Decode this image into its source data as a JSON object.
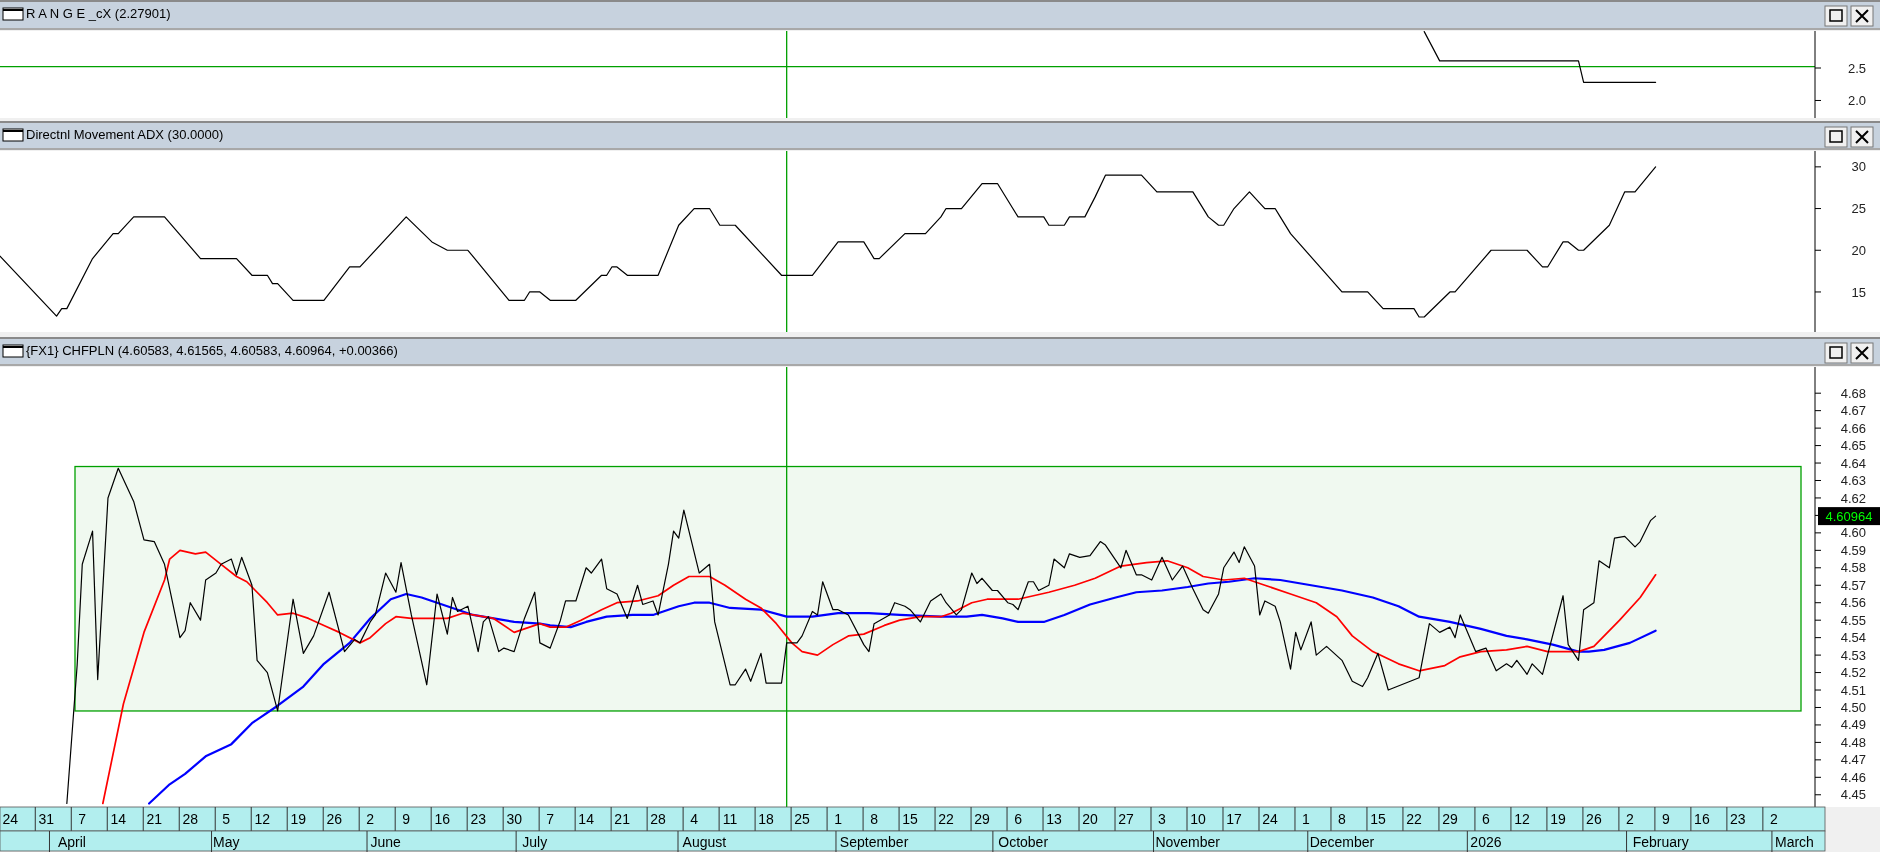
{
  "chart_data": [
    {
      "type": "line",
      "title": "R A N G E _cX (2.27901)",
      "xlim": [
        "2025-03-22",
        "2026-03-10"
      ],
      "ylim": [
        1.73,
        3.07
      ],
      "yticks": [
        {
          "value": 2,
          "label": "2.0"
        },
        2.5
      ],
      "tick_labels": "y",
      "series": [
        {
          "color": "#000000",
          "x": [
            "2025-12-24",
            "2025-12-27",
            "2026-01-23",
            "2026-01-24",
            "2026-02-07"
          ],
          "values": [
            3.06,
            2.61,
            2.61,
            2.28,
            2.28
          ]
        }
      ],
      "ref_lines": [
        {
          "axis": "x",
          "value": "2025-08-22",
          "color": "#00a000"
        },
        {
          "axis": "y",
          "value": 2.52,
          "color": "#00a000"
        }
      ]
    },
    {
      "type": "line",
      "title": "Directnl Movement ADX (30.0000)",
      "xlim": [
        "2025-03-22",
        "2026-03-10"
      ],
      "ylim": [
        10.2,
        31.9
      ],
      "yticks": [
        15,
        20,
        25,
        30
      ],
      "tick_labels": "y",
      "series": [
        {
          "color": "#000000",
          "x": [
            "2025-03-22",
            "2025-04-02",
            "2025-04-03",
            "2025-04-04",
            "2025-04-09",
            "2025-04-13",
            "2025-04-14",
            "2025-04-17",
            "2025-04-23",
            "2025-04-30",
            "2025-05-07",
            "2025-05-10",
            "2025-05-13",
            "2025-05-14",
            "2025-05-15",
            "2025-05-18",
            "2025-05-24",
            "2025-05-29",
            "2025-05-31",
            "2025-06-09",
            "2025-06-14",
            "2025-06-17",
            "2025-06-21",
            "2025-06-29",
            "2025-07-02",
            "2025-07-03",
            "2025-07-05",
            "2025-07-07",
            "2025-07-12",
            "2025-07-17",
            "2025-07-18",
            "2025-07-19",
            "2025-07-20",
            "2025-07-22",
            "2025-07-28",
            "2025-08-01",
            "2025-08-04",
            "2025-08-07",
            "2025-08-09",
            "2025-08-12",
            "2025-08-21",
            "2025-08-27",
            "2025-09-01",
            "2025-09-06",
            "2025-09-08",
            "2025-09-09",
            "2025-09-14",
            "2025-09-18",
            "2025-09-21",
            "2025-09-22",
            "2025-09-25",
            "2025-09-29",
            "2025-10-02",
            "2025-10-04",
            "2025-10-06",
            "2025-10-11",
            "2025-10-12",
            "2025-10-15",
            "2025-10-16",
            "2025-10-19",
            "2025-10-21",
            "2025-10-23",
            "2025-10-30",
            "2025-11-02",
            "2025-11-09",
            "2025-11-12",
            "2025-11-14",
            "2025-11-15",
            "2025-11-17",
            "2025-11-20",
            "2025-11-23",
            "2025-11-25",
            "2025-11-26",
            "2025-11-28",
            "2025-12-08",
            "2025-12-13",
            "2025-12-16",
            "2025-12-22",
            "2025-12-23",
            "2025-12-24",
            "2025-12-29",
            "2025-12-30",
            "2026-01-06",
            "2026-01-13",
            "2026-01-16",
            "2026-01-17",
            "2026-01-20",
            "2026-01-21",
            "2026-01-23",
            "2026-01-24",
            "2026-01-29",
            "2026-02-01",
            "2026-02-03",
            "2026-02-07"
          ],
          "values": [
            19.3,
            12.1,
            13,
            13,
            19,
            22,
            22,
            24,
            24,
            19,
            19,
            17,
            17,
            16,
            16,
            14,
            14,
            18,
            18,
            24,
            21,
            20,
            20,
            14,
            14,
            15,
            15,
            14,
            14,
            17,
            17,
            18,
            18,
            17,
            17,
            23,
            25,
            25,
            23,
            23,
            17,
            17,
            21,
            21,
            19,
            19,
            22,
            22,
            24,
            25,
            25,
            28,
            28,
            26,
            24,
            24,
            23,
            23,
            24,
            24,
            26.4,
            29,
            29,
            27,
            27,
            24,
            23,
            23,
            25,
            27,
            25,
            25,
            24,
            22,
            15,
            15,
            13,
            13,
            12,
            12,
            15,
            15,
            20,
            20,
            18,
            18,
            21,
            21,
            20,
            20,
            23,
            27,
            27,
            30
          ]
        }
      ],
      "ref_lines": [
        {
          "axis": "x",
          "value": "2025-08-22",
          "color": "#00a000"
        }
      ]
    },
    {
      "type": "line",
      "title": "{FX1} CHFPLN (4.60583, 4.61565, 4.60583, 4.60964, +0.00366)",
      "xlim": [
        "2025-03-22",
        "2026-03-10"
      ],
      "ylim": [
        4.443,
        4.695
      ],
      "yticks": [
        4.45,
        4.46,
        4.47,
        4.48,
        4.49,
        {
          "value": 4.5,
          "label": "4.50"
        },
        4.51,
        4.52,
        4.53,
        4.54,
        4.55,
        4.56,
        4.57,
        4.58,
        4.59,
        {
          "value": 4.6,
          "label": "4.60"
        },
        {
          "value": 4.61,
          "label": null
        },
        4.62,
        4.63,
        4.64,
        4.65,
        4.66,
        4.67,
        4.68
      ],
      "xticks": [
        {
          "value": "2025-03-24",
          "label": "24"
        },
        {
          "value": "2025-03-31",
          "label": "31"
        },
        {
          "value": "2025-04-07",
          "label": "7"
        },
        {
          "value": "2025-04-14",
          "label": "14"
        },
        {
          "value": "2025-04-21",
          "label": "21"
        },
        {
          "value": "2025-04-28",
          "label": "28"
        },
        {
          "value": "2025-05-05",
          "label": "5"
        },
        {
          "value": "2025-05-12",
          "label": "12"
        },
        {
          "value": "2025-05-19",
          "label": "19"
        },
        {
          "value": "2025-05-26",
          "label": "26"
        },
        {
          "value": "2025-06-02",
          "label": "2"
        },
        {
          "value": "2025-06-09",
          "label": "9"
        },
        {
          "value": "2025-06-16",
          "label": "16"
        },
        {
          "value": "2025-06-23",
          "label": "23"
        },
        {
          "value": "2025-06-30",
          "label": "30"
        },
        {
          "value": "2025-07-07",
          "label": "7"
        },
        {
          "value": "2025-07-14",
          "label": "14"
        },
        {
          "value": "2025-07-21",
          "label": "21"
        },
        {
          "value": "2025-07-28",
          "label": "28"
        },
        {
          "value": "2025-08-04",
          "label": "4"
        },
        {
          "value": "2025-08-11",
          "label": "11"
        },
        {
          "value": "2025-08-18",
          "label": "18"
        },
        {
          "value": "2025-08-25",
          "label": "25"
        },
        {
          "value": "2025-09-01",
          "label": "1"
        },
        {
          "value": "2025-09-08",
          "label": "8"
        },
        {
          "value": "2025-09-15",
          "label": "15"
        },
        {
          "value": "2025-09-22",
          "label": "22"
        },
        {
          "value": "2025-09-29",
          "label": "29"
        },
        {
          "value": "2025-10-06",
          "label": "6"
        },
        {
          "value": "2025-10-13",
          "label": "13"
        },
        {
          "value": "2025-10-20",
          "label": "20"
        },
        {
          "value": "2025-10-27",
          "label": "27"
        },
        {
          "value": "2025-11-03",
          "label": "3"
        },
        {
          "value": "2025-11-10",
          "label": "10"
        },
        {
          "value": "2025-11-17",
          "label": "17"
        },
        {
          "value": "2025-11-24",
          "label": "24"
        },
        {
          "value": "2025-12-01",
          "label": "1"
        },
        {
          "value": "2025-12-08",
          "label": "8"
        },
        {
          "value": "2025-12-15",
          "label": "15"
        },
        {
          "value": "2025-12-22",
          "label": "22"
        },
        {
          "value": "2025-12-29",
          "label": "29"
        },
        {
          "value": "2026-01-05",
          "label": "6"
        },
        {
          "value": "2026-01-12",
          "label": "12"
        },
        {
          "value": "2026-01-19",
          "label": "19"
        },
        {
          "value": "2026-01-26",
          "label": "26"
        },
        {
          "value": "2026-02-02",
          "label": "2"
        },
        {
          "value": "2026-02-09",
          "label": "9"
        },
        {
          "value": "2026-02-16",
          "label": "16"
        },
        {
          "value": "2026-02-23",
          "label": "23"
        },
        {
          "value": "2026-03-02",
          "label": "2"
        }
      ],
      "x2lim": [
        "2025-03-22",
        "2026-03-10"
      ],
      "x2ticks": [
        {
          "value": "2025-04-05",
          "label": "April"
        },
        {
          "value": "2025-05-05",
          "label": "May"
        },
        {
          "value": "2025-06-05",
          "label": "June"
        },
        {
          "value": "2025-07-04",
          "label": "July"
        },
        {
          "value": "2025-08-06",
          "label": "August"
        },
        {
          "value": "2025-09-08",
          "label": "September"
        },
        {
          "value": "2025-10-07",
          "label": "October"
        },
        {
          "value": "2025-11-08",
          "label": "November"
        },
        {
          "value": "2025-12-08",
          "label": "December"
        },
        {
          "value": "2026-01-05",
          "label": "2026"
        },
        {
          "value": "2026-02-08",
          "label": "February"
        },
        {
          "value": "2026-03-06",
          "label": "March"
        }
      ],
      "series": [
        {
          "color": "#000000",
          "x": [
            "2025-04-04",
            "2025-04-06",
            "2025-04-07",
            "2025-04-09",
            "2025-04-10",
            "2025-04-12",
            "2025-04-14",
            "2025-04-17",
            "2025-04-19",
            "2025-04-21",
            "2025-04-23",
            "2025-04-26",
            "2025-04-27",
            "2025-04-28",
            "2025-04-30",
            "2025-05-01",
            "2025-05-03",
            "2025-05-04",
            "2025-05-06",
            "2025-05-07",
            "2025-05-08",
            "2025-05-10",
            "2025-05-11",
            "2025-05-13",
            "2025-05-15",
            "2025-05-18",
            "2025-05-20",
            "2025-05-22",
            "2025-05-25",
            "2025-05-28",
            "2025-05-30",
            "2025-05-31",
            "2025-06-02",
            "2025-06-03",
            "2025-06-05",
            "2025-06-07",
            "2025-06-08",
            "2025-06-10",
            "2025-06-13",
            "2025-06-15",
            "2025-06-17",
            "2025-06-18",
            "2025-06-19",
            "2025-06-21",
            "2025-06-23",
            "2025-06-24",
            "2025-06-25",
            "2025-06-27",
            "2025-06-28",
            "2025-06-30",
            "2025-07-02",
            "2025-07-04",
            "2025-07-05",
            "2025-07-07",
            "2025-07-09",
            "2025-07-10",
            "2025-07-12",
            "2025-07-14",
            "2025-07-15",
            "2025-07-17",
            "2025-07-18",
            "2025-07-20",
            "2025-07-22",
            "2025-07-24",
            "2025-07-25",
            "2025-07-27",
            "2025-07-28",
            "2025-07-30",
            "2025-07-31",
            "2025-08-01",
            "2025-08-02",
            "2025-08-04",
            "2025-08-05",
            "2025-08-07",
            "2025-08-08",
            "2025-08-11",
            "2025-08-12",
            "2025-08-14",
            "2025-08-15",
            "2025-08-17",
            "2025-08-18",
            "2025-08-21",
            "2025-08-22",
            "2025-08-24",
            "2025-08-25",
            "2025-08-27",
            "2025-08-28",
            "2025-08-29",
            "2025-08-31",
            "2025-09-01",
            "2025-09-03",
            "2025-09-06",
            "2025-09-07",
            "2025-09-08",
            "2025-09-11",
            "2025-09-12",
            "2025-09-14",
            "2025-09-15",
            "2025-09-17",
            "2025-09-19",
            "2025-09-21",
            "2025-09-22",
            "2025-09-24",
            "2025-09-25",
            "2025-09-27",
            "2025-09-28",
            "2025-09-29",
            "2025-10-01",
            "2025-10-02",
            "2025-10-04",
            "2025-10-05",
            "2025-10-06",
            "2025-10-08",
            "2025-10-09",
            "2025-10-10",
            "2025-10-12",
            "2025-10-13",
            "2025-10-15",
            "2025-10-16",
            "2025-10-18",
            "2025-10-20",
            "2025-10-22",
            "2025-10-23",
            "2025-10-26",
            "2025-10-27",
            "2025-10-29",
            "2025-10-30",
            "2025-11-01",
            "2025-11-03",
            "2025-11-05",
            "2025-11-07",
            "2025-11-09",
            "2025-11-11",
            "2025-11-12",
            "2025-11-14",
            "2025-11-15",
            "2025-11-17",
            "2025-11-18",
            "2025-11-19",
            "2025-11-21",
            "2025-11-22",
            "2025-11-23",
            "2025-11-25",
            "2025-11-26",
            "2025-11-28",
            "2025-11-29",
            "2025-11-30",
            "2025-12-02",
            "2025-12-03",
            "2025-12-05",
            "2025-12-08",
            "2025-12-10",
            "2025-12-12",
            "2025-12-13",
            "2025-12-15",
            "2025-12-17",
            "2025-12-23",
            "2025-12-25",
            "2025-12-27",
            "2025-12-29",
            "2025-12-30",
            "2025-12-31",
            "2026-01-03",
            "2026-01-05",
            "2026-01-07",
            "2026-01-09",
            "2026-01-10",
            "2026-01-11",
            "2026-01-13",
            "2026-01-14",
            "2026-01-16",
            "2026-01-20",
            "2026-01-21",
            "2026-01-23",
            "2026-01-24",
            "2026-01-26",
            "2026-01-27",
            "2026-01-29",
            "2026-01-30",
            "2026-02-01",
            "2026-02-03",
            "2026-02-04",
            "2026-02-06",
            "2026-02-07"
          ],
          "values": [
            4.445,
            4.524,
            4.582,
            4.601,
            4.516,
            4.62,
            4.637,
            4.618,
            4.596,
            4.595,
            4.582,
            4.54,
            4.544,
            4.56,
            4.55,
            4.573,
            4.577,
            4.582,
            4.585,
            4.576,
            4.586,
            4.57,
            4.527,
            4.52,
            4.498,
            4.562,
            4.531,
            4.541,
            4.566,
            4.532,
            4.539,
            4.537,
            4.549,
            4.553,
            4.577,
            4.566,
            4.583,
            4.553,
            4.513,
            4.565,
            4.542,
            4.563,
            4.555,
            4.558,
            4.532,
            4.549,
            4.552,
            4.532,
            4.534,
            4.532,
            4.551,
            4.566,
            4.537,
            4.534,
            4.55,
            4.561,
            4.561,
            4.58,
            4.577,
            4.585,
            4.568,
            4.565,
            4.551,
            4.57,
            4.559,
            4.561,
            4.553,
            4.582,
            4.601,
            4.597,
            4.613,
            4.589,
            4.577,
            4.582,
            4.549,
            4.513,
            4.513,
            4.522,
            4.515,
            4.531,
            4.514,
            4.514,
            4.537,
            4.537,
            4.541,
            4.555,
            4.553,
            4.572,
            4.556,
            4.556,
            4.553,
            4.536,
            4.532,
            4.548,
            4.553,
            4.56,
            4.558,
            4.556,
            4.549,
            4.561,
            4.565,
            4.56,
            4.553,
            4.556,
            4.577,
            4.571,
            4.574,
            4.567,
            4.567,
            4.56,
            4.559,
            4.556,
            4.572,
            4.572,
            4.567,
            4.57,
            4.585,
            4.58,
            4.588,
            4.586,
            4.587,
            4.595,
            4.593,
            4.58,
            4.59,
            4.576,
            4.576,
            4.573,
            4.586,
            4.573,
            4.581,
            4.568,
            4.556,
            4.554,
            4.565,
            4.58,
            4.589,
            4.583,
            4.592,
            4.581,
            4.553,
            4.561,
            4.558,
            4.549,
            4.522,
            4.543,
            4.533,
            4.549,
            4.53,
            4.535,
            4.527,
            4.515,
            4.512,
            4.517,
            4.531,
            4.51,
            4.517,
            4.548,
            4.543,
            4.546,
            4.54,
            4.553,
            4.532,
            4.534,
            4.521,
            4.525,
            4.523,
            4.527,
            4.519,
            4.525,
            4.519,
            4.564,
            4.536,
            4.527,
            4.556,
            4.56,
            4.584,
            4.58,
            4.597,
            4.598,
            4.592,
            4.595,
            4.607,
            4.6096
          ]
        },
        {
          "color": "#ff0000",
          "x": [
            "2025-04-11",
            "2025-04-15",
            "2025-04-19",
            "2025-04-23",
            "2025-04-24",
            "2025-04-26",
            "2025-04-29",
            "2025-05-01",
            "2025-05-04",
            "2025-05-07",
            "2025-05-09",
            "2025-05-13",
            "2025-05-15",
            "2025-05-18",
            "2025-05-21",
            "2025-05-24",
            "2025-05-27",
            "2025-05-31",
            "2025-06-02",
            "2025-06-05",
            "2025-06-07",
            "2025-06-10",
            "2025-06-13",
            "2025-06-17",
            "2025-06-20",
            "2025-06-24",
            "2025-06-26",
            "2025-06-30",
            "2025-07-03",
            "2025-07-05",
            "2025-07-07",
            "2025-07-10",
            "2025-07-13",
            "2025-07-17",
            "2025-07-20",
            "2025-07-24",
            "2025-07-28",
            "2025-07-31",
            "2025-08-03",
            "2025-08-07",
            "2025-08-10",
            "2025-08-14",
            "2025-08-17",
            "2025-08-20",
            "2025-08-23",
            "2025-08-25",
            "2025-08-28",
            "2025-08-31",
            "2025-09-03",
            "2025-09-06",
            "2025-09-10",
            "2025-09-13",
            "2025-09-17",
            "2025-09-21",
            "2025-09-23",
            "2025-09-27",
            "2025-09-30",
            "2025-10-06",
            "2025-10-12",
            "2025-10-17",
            "2025-10-21",
            "2025-10-26",
            "2025-10-31",
            "2025-11-04",
            "2025-11-08",
            "2025-11-11",
            "2025-11-15",
            "2025-11-19",
            "2025-11-23",
            "2025-11-28",
            "2025-12-03",
            "2025-12-07",
            "2025-12-10",
            "2025-12-14",
            "2025-12-19",
            "2025-12-23",
            "2025-12-28",
            "2025-12-31",
            "2026-01-04",
            "2026-01-09",
            "2026-01-13",
            "2026-01-17",
            "2026-01-20",
            "2026-01-23",
            "2026-01-26",
            "2026-01-31",
            "2026-02-04",
            "2026-02-07"
          ],
          "values": [
            4.445,
            4.502,
            4.543,
            4.573,
            4.585,
            4.59,
            4.588,
            4.589,
            4.582,
            4.575,
            4.572,
            4.56,
            4.553,
            4.554,
            4.551,
            4.547,
            4.543,
            4.537,
            4.54,
            4.548,
            4.552,
            4.551,
            4.551,
            4.551,
            4.554,
            4.552,
            4.551,
            4.543,
            4.546,
            4.548,
            4.546,
            4.546,
            4.55,
            4.556,
            4.56,
            4.561,
            4.564,
            4.57,
            4.575,
            4.575,
            4.57,
            4.562,
            4.557,
            4.548,
            4.537,
            4.532,
            4.53,
            4.536,
            4.541,
            4.542,
            4.547,
            4.55,
            4.552,
            4.552,
            4.554,
            4.56,
            4.562,
            4.562,
            4.566,
            4.57,
            4.574,
            4.581,
            4.583,
            4.584,
            4.58,
            4.575,
            4.573,
            4.574,
            4.57,
            4.565,
            4.56,
            4.552,
            4.541,
            4.532,
            4.525,
            4.521,
            4.524,
            4.529,
            4.532,
            4.533,
            4.535,
            4.532,
            4.532,
            4.532,
            4.535,
            4.55,
            4.563,
            4.576
          ]
        },
        {
          "color": "#0000ff",
          "x": [
            "2025-04-20",
            "2025-04-24",
            "2025-04-27",
            "2025-05-01",
            "2025-05-06",
            "2025-05-10",
            "2025-05-15",
            "2025-05-20",
            "2025-05-24",
            "2025-05-29",
            "2025-06-02",
            "2025-06-06",
            "2025-06-09",
            "2025-06-12",
            "2025-06-15",
            "2025-06-19",
            "2025-06-22",
            "2025-06-26",
            "2025-06-30",
            "2025-07-05",
            "2025-07-07",
            "2025-07-11",
            "2025-07-14",
            "2025-07-18",
            "2025-07-23",
            "2025-07-27",
            "2025-08-01",
            "2025-08-04",
            "2025-08-07",
            "2025-08-11",
            "2025-08-17",
            "2025-08-22",
            "2025-08-27",
            "2025-09-01",
            "2025-09-07",
            "2025-09-13",
            "2025-09-21",
            "2025-09-26",
            "2025-09-29",
            "2025-10-03",
            "2025-10-06",
            "2025-10-11",
            "2025-10-15",
            "2025-10-20",
            "2025-10-25",
            "2025-10-29",
            "2025-11-03",
            "2025-11-08",
            "2025-11-12",
            "2025-11-16",
            "2025-11-21",
            "2025-11-26",
            "2025-12-02",
            "2025-12-08",
            "2025-12-14",
            "2025-12-19",
            "2025-12-23",
            "2025-12-29",
            "2026-01-04",
            "2026-01-09",
            "2026-01-13",
            "2026-01-18",
            "2026-01-23",
            "2026-01-25",
            "2026-01-28",
            "2026-02-02",
            "2026-02-07"
          ],
          "values": [
            4.445,
            4.456,
            4.462,
            4.472,
            4.479,
            4.491,
            4.501,
            4.512,
            4.525,
            4.537,
            4.551,
            4.562,
            4.565,
            4.563,
            4.56,
            4.556,
            4.553,
            4.551,
            4.549,
            4.548,
            4.547,
            4.546,
            4.549,
            4.552,
            4.553,
            4.553,
            4.558,
            4.56,
            4.56,
            4.557,
            4.556,
            4.552,
            4.552,
            4.554,
            4.554,
            4.553,
            4.552,
            4.552,
            4.553,
            4.551,
            4.549,
            4.549,
            4.553,
            4.559,
            4.563,
            4.566,
            4.567,
            4.569,
            4.571,
            4.572,
            4.574,
            4.573,
            4.57,
            4.567,
            4.563,
            4.558,
            4.552,
            4.549,
            4.545,
            4.541,
            4.539,
            4.536,
            4.532,
            4.532,
            4.533,
            4.537,
            4.544
          ]
        }
      ],
      "ref_lines": [
        {
          "axis": "x",
          "value": "2025-08-22",
          "color": "#00a000"
        }
      ],
      "bands": [
        {
          "axis": "y",
          "from": 4.498,
          "to": 4.638,
          "color": "#00a000"
        }
      ],
      "annotations": [
        "4.60964"
      ]
    }
  ]
}
